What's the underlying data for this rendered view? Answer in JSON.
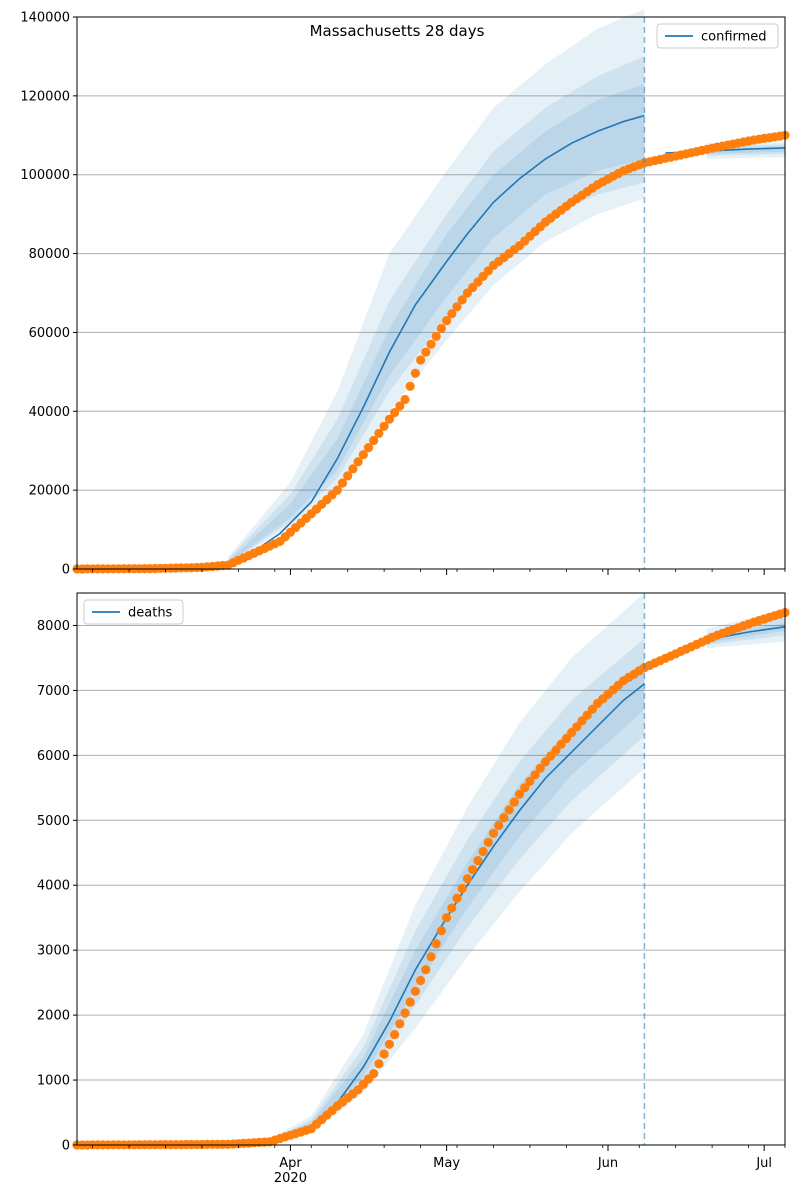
{
  "title": "Massachusetts 28 days",
  "colors": {
    "model_line": "#1f77b4",
    "band": "#1f77b4",
    "observed": "#ff7f0e",
    "grid": "#b0b0b0",
    "axis": "#000000"
  },
  "x_axis": {
    "start": "2020-02-20",
    "end": "2020-07-05",
    "month_ticks": [
      {
        "date": "2020-04-01",
        "label": "Apr"
      },
      {
        "date": "2020-05-01",
        "label": "May"
      },
      {
        "date": "2020-06-01",
        "label": "Jun"
      },
      {
        "date": "2020-07-01",
        "label": "Jul"
      }
    ],
    "year_label": "2020"
  },
  "chart_data": [
    {
      "type": "line",
      "legend": {
        "label": "confirmed",
        "placement": "top-right"
      },
      "grid": "horizontal",
      "ylim": [
        0,
        140000
      ],
      "yticks": [
        0,
        20000,
        40000,
        60000,
        80000,
        100000,
        120000,
        140000
      ],
      "cutoff_date": "2020-06-08",
      "model": [
        {
          "date": "2020-03-20",
          "value": 1500
        },
        {
          "date": "2020-03-25",
          "value": 4500
        },
        {
          "date": "2020-03-30",
          "value": 9000
        },
        {
          "date": "2020-04-05",
          "value": 17000
        },
        {
          "date": "2020-04-10",
          "value": 28000
        },
        {
          "date": "2020-04-15",
          "value": 41000
        },
        {
          "date": "2020-04-20",
          "value": 55000
        },
        {
          "date": "2020-04-25",
          "value": 67000
        },
        {
          "date": "2020-05-01",
          "value": 78000
        },
        {
          "date": "2020-05-05",
          "value": 85000
        },
        {
          "date": "2020-05-10",
          "value": 93000
        },
        {
          "date": "2020-05-15",
          "value": 99000
        },
        {
          "date": "2020-05-20",
          "value": 104000
        },
        {
          "date": "2020-05-25",
          "value": 108000
        },
        {
          "date": "2020-05-30",
          "value": 111000
        },
        {
          "date": "2020-06-04",
          "value": 113500
        },
        {
          "date": "2020-06-08",
          "value": 115000
        },
        {
          "date": "2020-06-12",
          "value": 105500
        },
        {
          "date": "2020-06-20",
          "value": 106000
        },
        {
          "date": "2020-06-28",
          "value": 106500
        },
        {
          "date": "2020-07-05",
          "value": 106800
        }
      ],
      "bands": [
        {
          "level": "outer",
          "points": [
            {
              "date": "2020-03-20",
              "lo": 1000,
              "hi": 3000
            },
            {
              "date": "2020-04-01",
              "lo": 11000,
              "hi": 22000
            },
            {
              "date": "2020-04-10",
              "lo": 20000,
              "hi": 45000
            },
            {
              "date": "2020-04-20",
              "lo": 40000,
              "hi": 80000
            },
            {
              "date": "2020-05-01",
              "lo": 58000,
              "hi": 101000
            },
            {
              "date": "2020-05-10",
              "lo": 72000,
              "hi": 117000
            },
            {
              "date": "2020-05-20",
              "lo": 83000,
              "hi": 128000
            },
            {
              "date": "2020-05-30",
              "lo": 90000,
              "hi": 137000
            },
            {
              "date": "2020-06-08",
              "lo": 94000,
              "hi": 142000
            },
            {
              "date": "2020-06-20",
              "lo": 104000,
              "hi": 108000
            },
            {
              "date": "2020-07-05",
              "lo": 104500,
              "hi": 108500
            }
          ]
        },
        {
          "level": "middle",
          "points": [
            {
              "date": "2020-03-20",
              "lo": 1200,
              "hi": 2500
            },
            {
              "date": "2020-04-01",
              "lo": 12000,
              "hi": 19000
            },
            {
              "date": "2020-04-10",
              "lo": 23000,
              "hi": 38000
            },
            {
              "date": "2020-04-20",
              "lo": 45000,
              "hi": 68000
            },
            {
              "date": "2020-05-01",
              "lo": 64000,
              "hi": 90000
            },
            {
              "date": "2020-05-10",
              "lo": 78000,
              "hi": 106000
            },
            {
              "date": "2020-05-20",
              "lo": 89000,
              "hi": 117000
            },
            {
              "date": "2020-05-30",
              "lo": 95000,
              "hi": 125000
            },
            {
              "date": "2020-06-08",
              "lo": 98000,
              "hi": 130000
            },
            {
              "date": "2020-06-20",
              "lo": 104800,
              "hi": 107200
            },
            {
              "date": "2020-07-05",
              "lo": 105300,
              "hi": 107700
            }
          ]
        },
        {
          "level": "inner",
          "points": [
            {
              "date": "2020-03-20",
              "lo": 1300,
              "hi": 2000
            },
            {
              "date": "2020-04-01",
              "lo": 13000,
              "hi": 16500
            },
            {
              "date": "2020-04-10",
              "lo": 25000,
              "hi": 33000
            },
            {
              "date": "2020-04-20",
              "lo": 49000,
              "hi": 61000
            },
            {
              "date": "2020-05-01",
              "lo": 69000,
              "hi": 85000
            },
            {
              "date": "2020-05-10",
              "lo": 84000,
              "hi": 100000
            },
            {
              "date": "2020-05-20",
              "lo": 95000,
              "hi": 111000
            },
            {
              "date": "2020-05-30",
              "lo": 101000,
              "hi": 119000
            },
            {
              "date": "2020-06-08",
              "lo": 104000,
              "hi": 123000
            },
            {
              "date": "2020-06-20",
              "lo": 105300,
              "hi": 106700
            },
            {
              "date": "2020-07-05",
              "lo": 105800,
              "hi": 107200
            }
          ]
        }
      ],
      "observed": [
        {
          "date": "2020-02-20",
          "value": 0
        },
        {
          "date": "2020-03-05",
          "value": 100
        },
        {
          "date": "2020-03-15",
          "value": 400
        },
        {
          "date": "2020-03-20",
          "value": 1000
        },
        {
          "date": "2020-03-25",
          "value": 4000
        },
        {
          "date": "2020-03-30",
          "value": 7000
        },
        {
          "date": "2020-04-05",
          "value": 14000
        },
        {
          "date": "2020-04-10",
          "value": 20000
        },
        {
          "date": "2020-04-15",
          "value": 29000
        },
        {
          "date": "2020-04-20",
          "value": 38000
        },
        {
          "date": "2020-04-23",
          "value": 43000
        },
        {
          "date": "2020-04-26",
          "value": 53000
        },
        {
          "date": "2020-05-01",
          "value": 63000
        },
        {
          "date": "2020-05-05",
          "value": 70000
        },
        {
          "date": "2020-05-10",
          "value": 77000
        },
        {
          "date": "2020-05-15",
          "value": 82000
        },
        {
          "date": "2020-05-20",
          "value": 88000
        },
        {
          "date": "2020-05-25",
          "value": 93000
        },
        {
          "date": "2020-05-30",
          "value": 97500
        },
        {
          "date": "2020-06-04",
          "value": 101000
        },
        {
          "date": "2020-06-08",
          "value": 103000
        },
        {
          "date": "2020-06-15",
          "value": 105000
        },
        {
          "date": "2020-06-22",
          "value": 107000
        },
        {
          "date": "2020-06-29",
          "value": 108800
        },
        {
          "date": "2020-07-05",
          "value": 110000
        }
      ]
    },
    {
      "type": "line",
      "legend": {
        "label": "deaths",
        "placement": "top-left"
      },
      "grid": "horizontal",
      "ylim": [
        0,
        8500
      ],
      "yticks": [
        0,
        1000,
        2000,
        3000,
        4000,
        5000,
        6000,
        7000,
        8000
      ],
      "cutoff_date": "2020-06-08",
      "model": [
        {
          "date": "2020-03-28",
          "value": 60
        },
        {
          "date": "2020-04-01",
          "value": 150
        },
        {
          "date": "2020-04-05",
          "value": 300
        },
        {
          "date": "2020-04-10",
          "value": 650
        },
        {
          "date": "2020-04-15",
          "value": 1200
        },
        {
          "date": "2020-04-20",
          "value": 1900
        },
        {
          "date": "2020-04-25",
          "value": 2700
        },
        {
          "date": "2020-05-01",
          "value": 3500
        },
        {
          "date": "2020-05-05",
          "value": 4000
        },
        {
          "date": "2020-05-10",
          "value": 4600
        },
        {
          "date": "2020-05-15",
          "value": 5150
        },
        {
          "date": "2020-05-20",
          "value": 5650
        },
        {
          "date": "2020-05-25",
          "value": 6050
        },
        {
          "date": "2020-05-30",
          "value": 6450
        },
        {
          "date": "2020-06-04",
          "value": 6850
        },
        {
          "date": "2020-06-08",
          "value": 7100
        },
        {
          "date": "2020-06-12",
          "value": 7520
        },
        {
          "date": "2020-06-20",
          "value": 7780
        },
        {
          "date": "2020-06-28",
          "value": 7900
        },
        {
          "date": "2020-07-05",
          "value": 7980
        }
      ],
      "bands": [
        {
          "level": "outer",
          "points": [
            {
              "date": "2020-03-28",
              "lo": 40,
              "hi": 90
            },
            {
              "date": "2020-04-05",
              "lo": 200,
              "hi": 450
            },
            {
              "date": "2020-04-15",
              "lo": 800,
              "hi": 1700
            },
            {
              "date": "2020-04-25",
              "lo": 1800,
              "hi": 3700
            },
            {
              "date": "2020-05-05",
              "lo": 2900,
              "hi": 5200
            },
            {
              "date": "2020-05-15",
              "lo": 3900,
              "hi": 6500
            },
            {
              "date": "2020-05-25",
              "lo": 4800,
              "hi": 7500
            },
            {
              "date": "2020-06-08",
              "lo": 5800,
              "hi": 8500
            },
            {
              "date": "2020-06-20",
              "lo": 7650,
              "hi": 7950
            },
            {
              "date": "2020-07-05",
              "lo": 7750,
              "hi": 8250
            }
          ]
        },
        {
          "level": "middle",
          "points": [
            {
              "date": "2020-03-28",
              "lo": 45,
              "hi": 80
            },
            {
              "date": "2020-04-05",
              "lo": 230,
              "hi": 390
            },
            {
              "date": "2020-04-15",
              "lo": 950,
              "hi": 1500
            },
            {
              "date": "2020-04-25",
              "lo": 2150,
              "hi": 3300
            },
            {
              "date": "2020-05-05",
              "lo": 3350,
              "hi": 4700
            },
            {
              "date": "2020-05-15",
              "lo": 4400,
              "hi": 5900
            },
            {
              "date": "2020-05-25",
              "lo": 5300,
              "hi": 6850
            },
            {
              "date": "2020-06-08",
              "lo": 6300,
              "hi": 7800
            },
            {
              "date": "2020-06-20",
              "lo": 7700,
              "hi": 7880
            },
            {
              "date": "2020-07-05",
              "lo": 7850,
              "hi": 8120
            }
          ]
        },
        {
          "level": "inner",
          "points": [
            {
              "date": "2020-03-28",
              "lo": 50,
              "hi": 70
            },
            {
              "date": "2020-04-05",
              "lo": 260,
              "hi": 350
            },
            {
              "date": "2020-04-15",
              "lo": 1050,
              "hi": 1350
            },
            {
              "date": "2020-04-25",
              "lo": 2400,
              "hi": 3000
            },
            {
              "date": "2020-05-05",
              "lo": 3650,
              "hi": 4350
            },
            {
              "date": "2020-05-15",
              "lo": 4750,
              "hi": 5550
            },
            {
              "date": "2020-05-25",
              "lo": 5700,
              "hi": 6450
            },
            {
              "date": "2020-06-08",
              "lo": 6700,
              "hi": 7450
            },
            {
              "date": "2020-06-20",
              "lo": 7730,
              "hi": 7830
            },
            {
              "date": "2020-07-05",
              "lo": 7920,
              "hi": 8040
            }
          ]
        }
      ],
      "observed": [
        {
          "date": "2020-02-20",
          "value": 0
        },
        {
          "date": "2020-03-20",
          "value": 10
        },
        {
          "date": "2020-03-28",
          "value": 50
        },
        {
          "date": "2020-04-01",
          "value": 150
        },
        {
          "date": "2020-04-05",
          "value": 250
        },
        {
          "date": "2020-04-10",
          "value": 600
        },
        {
          "date": "2020-04-14",
          "value": 850
        },
        {
          "date": "2020-04-17",
          "value": 1100
        },
        {
          "date": "2020-04-21",
          "value": 1700
        },
        {
          "date": "2020-04-24",
          "value": 2200
        },
        {
          "date": "2020-04-27",
          "value": 2700
        },
        {
          "date": "2020-05-01",
          "value": 3500
        },
        {
          "date": "2020-05-05",
          "value": 4100
        },
        {
          "date": "2020-05-10",
          "value": 4800
        },
        {
          "date": "2020-05-15",
          "value": 5400
        },
        {
          "date": "2020-05-20",
          "value": 5900
        },
        {
          "date": "2020-05-25",
          "value": 6350
        },
        {
          "date": "2020-05-30",
          "value": 6800
        },
        {
          "date": "2020-06-04",
          "value": 7150
        },
        {
          "date": "2020-06-08",
          "value": 7350
        },
        {
          "date": "2020-06-15",
          "value": 7600
        },
        {
          "date": "2020-06-22",
          "value": 7850
        },
        {
          "date": "2020-06-29",
          "value": 8050
        },
        {
          "date": "2020-07-05",
          "value": 8200
        }
      ]
    }
  ]
}
